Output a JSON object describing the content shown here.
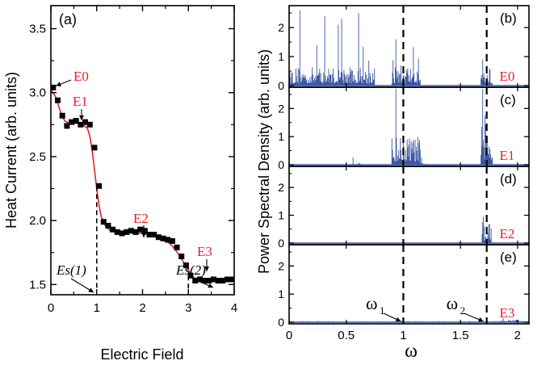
{
  "chart_data": [
    {
      "id": "a",
      "type": "scatter",
      "panel_label": "(a)",
      "xlabel": "Electric Field",
      "ylabel": "Heat Current (arb. units)",
      "xlim": [
        0,
        4
      ],
      "ylim": [
        1.42,
        3.68
      ],
      "xticks": [
        0,
        1,
        2,
        3,
        4
      ],
      "yticks": [
        1.5,
        2.0,
        2.5,
        3.0,
        3.5
      ],
      "xtick_labels": [
        "0",
        "1",
        "2",
        "3",
        "4"
      ],
      "ytick_labels": [
        "1.5",
        "2.0",
        "2.5",
        "3.0",
        "3.5"
      ],
      "series": [
        {
          "marker": "square",
          "color": "#000000",
          "x": [
            0.05,
            0.15,
            0.25,
            0.35,
            0.45,
            0.55,
            0.65,
            0.75,
            0.85,
            0.95,
            1.05,
            1.15,
            1.25,
            1.35,
            1.45,
            1.55,
            1.65,
            1.75,
            1.85,
            1.95,
            2.05,
            2.15,
            2.25,
            2.35,
            2.45,
            2.55,
            2.65,
            2.75,
            2.85,
            2.95,
            3.05,
            3.15,
            3.25,
            3.35,
            3.45,
            3.55,
            3.65,
            3.75,
            3.85,
            3.95
          ],
          "y": [
            3.04,
            2.94,
            2.82,
            2.74,
            2.77,
            2.78,
            2.75,
            2.77,
            2.75,
            2.57,
            2.27,
            1.99,
            1.96,
            1.93,
            1.91,
            1.9,
            1.91,
            1.92,
            1.91,
            1.93,
            1.92,
            1.89,
            1.89,
            1.87,
            1.86,
            1.85,
            1.84,
            1.79,
            1.72,
            1.65,
            1.57,
            1.53,
            1.54,
            1.53,
            1.53,
            1.54,
            1.53,
            1.53,
            1.54,
            1.54
          ]
        },
        {
          "type": "line",
          "color": "#e8202a",
          "x": [
            0.0,
            0.1,
            0.2,
            0.3,
            0.4,
            0.5,
            0.6,
            0.7,
            0.8,
            0.85,
            0.9,
            0.95,
            1.0,
            1.05,
            1.1,
            1.2,
            1.3,
            1.4,
            1.5,
            1.6,
            1.7,
            1.8,
            1.9,
            2.0,
            2.1,
            2.2,
            2.3,
            2.4,
            2.5,
            2.6,
            2.7,
            2.8,
            2.9,
            3.0,
            3.1,
            3.2,
            3.3,
            3.5,
            3.7,
            4.0
          ],
          "y": [
            3.02,
            2.97,
            2.86,
            2.78,
            2.76,
            2.76,
            2.76,
            2.75,
            2.72,
            2.66,
            2.55,
            2.4,
            2.25,
            2.12,
            2.03,
            1.95,
            1.92,
            1.91,
            1.91,
            1.91,
            1.91,
            1.91,
            1.9,
            1.9,
            1.89,
            1.88,
            1.87,
            1.86,
            1.84,
            1.82,
            1.78,
            1.73,
            1.67,
            1.61,
            1.56,
            1.535,
            1.53,
            1.53,
            1.53,
            1.53
          ]
        }
      ],
      "annotations": [
        {
          "text": "E0",
          "x": 0.04,
          "y": 3.04,
          "color": "#e8202a"
        },
        {
          "text": "E1",
          "x": 0.55,
          "y": 2.78,
          "color": "#e8202a"
        },
        {
          "text": "E2",
          "x": 1.8,
          "y": 1.93,
          "color": "#e8202a"
        },
        {
          "text": "E3",
          "x": 3.3,
          "y": 1.54,
          "color": "#e8202a"
        },
        {
          "text": "Es(1)",
          "x": 0.98,
          "y": 1.45,
          "color": "#000000"
        },
        {
          "text": "Es(2)",
          "x": 2.98,
          "y": 1.5,
          "color": "#000000"
        }
      ],
      "vlines": [
        {
          "x": 1.0,
          "from": 1.45,
          "to": 2.27,
          "style": "dashed"
        },
        {
          "x": 3.0,
          "from": 1.45,
          "to": 1.57,
          "style": "dashed"
        }
      ]
    },
    {
      "type": "area",
      "shared": {
        "xlabel": "ω",
        "ylabel": "Power Spectral Density (arb. units)",
        "xlim": [
          0,
          2.1
        ],
        "xticks": [
          0,
          0.5,
          1,
          1.5,
          2
        ],
        "xtick_labels": [
          "0",
          "0.5",
          "1",
          "1.5",
          "2"
        ],
        "vlines": [
          {
            "x": 1.0,
            "style": "dashed",
            "label": "ω1"
          },
          {
            "x": 1.73,
            "style": "dashed",
            "label": "ω2"
          }
        ],
        "color": "#3a56a6"
      },
      "panels": [
        {
          "id": "b",
          "panel_label": "(b)",
          "series_label": "E0",
          "ylim": [
            0,
            2.7
          ],
          "yticks": [
            0,
            1,
            2
          ],
          "ytick_labels": [
            "0",
            "1",
            "2"
          ],
          "segments": [
            {
              "x_start": 0.0,
              "x_end": 0.75,
              "max": 2.6,
              "typical": 0.45
            },
            {
              "x_start": 0.9,
              "x_end": 1.15,
              "max": 1.6,
              "typical": 0.5
            },
            {
              "x_start": 1.68,
              "x_end": 1.78,
              "max": 0.9,
              "typical": 0.4
            }
          ]
        },
        {
          "id": "c",
          "panel_label": "(c)",
          "series_label": "E1",
          "ylim": [
            0,
            2.7
          ],
          "yticks": [
            0,
            1,
            2
          ],
          "ytick_labels": [
            "0",
            "1",
            "2"
          ],
          "segments": [
            {
              "x_start": 0.55,
              "x_end": 0.62,
              "max": 0.25,
              "typical": 0.05
            },
            {
              "x_start": 0.9,
              "x_end": 1.15,
              "max": 2.7,
              "typical": 0.7
            },
            {
              "x_start": 1.15,
              "x_end": 1.2,
              "max": 0.25,
              "typical": 0.05
            },
            {
              "x_start": 1.68,
              "x_end": 1.78,
              "max": 2.7,
              "typical": 1.0
            }
          ]
        },
        {
          "id": "d",
          "panel_label": "(d)",
          "series_label": "E2",
          "ylim": [
            0,
            2.7
          ],
          "yticks": [
            0,
            1,
            2
          ],
          "ytick_labels": [
            "0",
            "1",
            "2"
          ],
          "segments": [
            {
              "x_start": 1.69,
              "x_end": 1.77,
              "max": 0.95,
              "typical": 0.6
            }
          ]
        },
        {
          "id": "e",
          "panel_label": "(e)",
          "series_label": "E3",
          "ylim": [
            0,
            2.7
          ],
          "yticks": [
            0,
            1,
            2
          ],
          "ytick_labels": [
            "0",
            "1",
            "2"
          ],
          "segments": [
            {
              "x_start": 0.0,
              "x_end": 2.1,
              "max": 0.05,
              "typical": 0.02
            },
            {
              "x_start": 1.85,
              "x_end": 2.05,
              "max": 0.15,
              "typical": 0.06
            }
          ]
        }
      ]
    }
  ]
}
